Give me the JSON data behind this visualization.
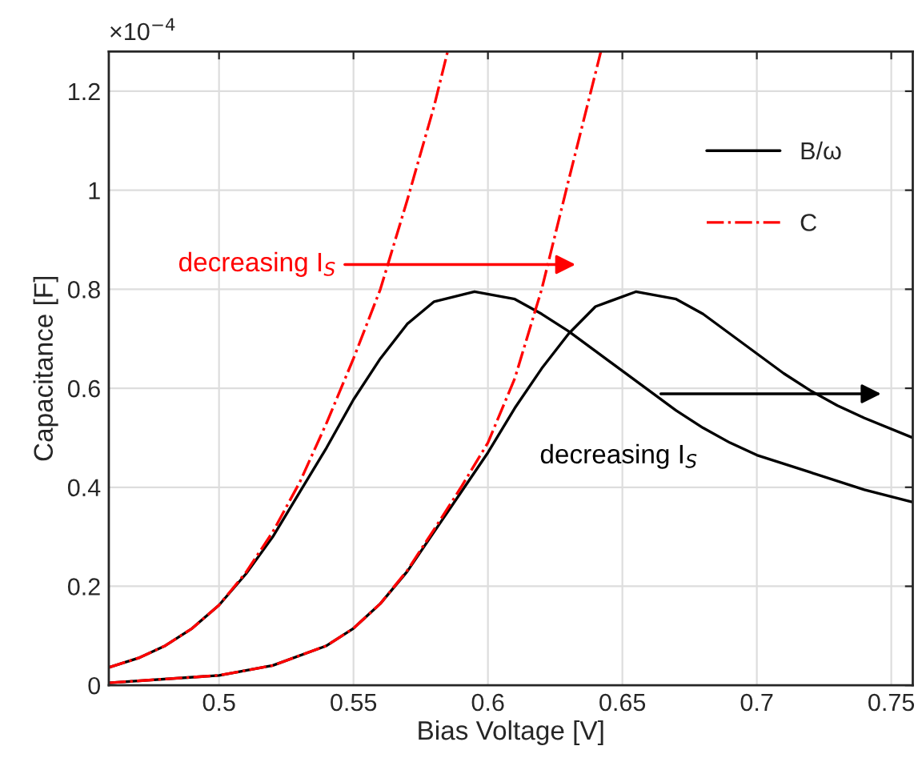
{
  "chart_data": {
    "type": "line",
    "xlabel": "Bias Voltage [V]",
    "ylabel": "Capacitance [F]",
    "xlim": [
      0.459,
      0.758
    ],
    "xticks": [
      0.5,
      0.55,
      0.6,
      0.65,
      0.7,
      0.75
    ],
    "ylim": [
      0,
      1.28
    ],
    "yticks": [
      0,
      0.2,
      0.4,
      0.6,
      0.8,
      1,
      1.2
    ],
    "grid": true,
    "legend": "top right",
    "series": [
      {
        "name": "B/ω",
        "color": "#000000",
        "line_style": "solid",
        "x": [
          0.459,
          0.47,
          0.48,
          0.49,
          0.5,
          0.51,
          0.52,
          0.53,
          0.54,
          0.55,
          0.56,
          0.57,
          0.58,
          0.595,
          0.61,
          0.62,
          0.63,
          0.64,
          0.65,
          0.66,
          0.67,
          0.68,
          0.69,
          0.7,
          0.72,
          0.74,
          0.758
        ],
        "values": [
          0.036,
          0.055,
          0.08,
          0.115,
          0.162,
          0.225,
          0.3,
          0.39,
          0.48,
          0.577,
          0.66,
          0.73,
          0.775,
          0.795,
          0.78,
          0.75,
          0.715,
          0.675,
          0.635,
          0.595,
          0.555,
          0.52,
          0.49,
          0.465,
          0.43,
          0.395,
          0.37
        ]
      },
      {
        "name": "C",
        "color": "#ff0000",
        "line_style": "dashdot",
        "x": [
          0.459,
          0.47,
          0.48,
          0.49,
          0.5,
          0.51,
          0.52,
          0.53,
          0.54,
          0.55,
          0.56,
          0.57,
          0.58,
          0.585
        ],
        "values": [
          0.036,
          0.055,
          0.08,
          0.115,
          0.162,
          0.228,
          0.31,
          0.41,
          0.53,
          0.66,
          0.8,
          0.98,
          1.17,
          1.28
        ]
      },
      {
        "color": "#000000",
        "line_style": "solid",
        "x": [
          0.459,
          0.5,
          0.52,
          0.54,
          0.55,
          0.56,
          0.57,
          0.58,
          0.59,
          0.6,
          0.61,
          0.62,
          0.63,
          0.64,
          0.655,
          0.67,
          0.68,
          0.69,
          0.7,
          0.71,
          0.72,
          0.73,
          0.74,
          0.758
        ],
        "values": [
          0.005,
          0.02,
          0.04,
          0.08,
          0.115,
          0.165,
          0.23,
          0.31,
          0.39,
          0.47,
          0.56,
          0.64,
          0.71,
          0.765,
          0.795,
          0.78,
          0.75,
          0.71,
          0.67,
          0.63,
          0.595,
          0.565,
          0.54,
          0.5
        ]
      },
      {
        "color": "#ff0000",
        "line_style": "dashdot",
        "x": [
          0.459,
          0.5,
          0.52,
          0.54,
          0.55,
          0.56,
          0.57,
          0.58,
          0.59,
          0.6,
          0.61,
          0.62,
          0.63,
          0.642
        ],
        "values": [
          0.005,
          0.02,
          0.04,
          0.08,
          0.115,
          0.165,
          0.232,
          0.315,
          0.4,
          0.49,
          0.62,
          0.8,
          1.02,
          1.28
        ]
      }
    ],
    "annotations": [
      "×10$^{−4}$",
      "decreasing I$_{S}$",
      "decreasing I$_{S}$"
    ]
  }
}
